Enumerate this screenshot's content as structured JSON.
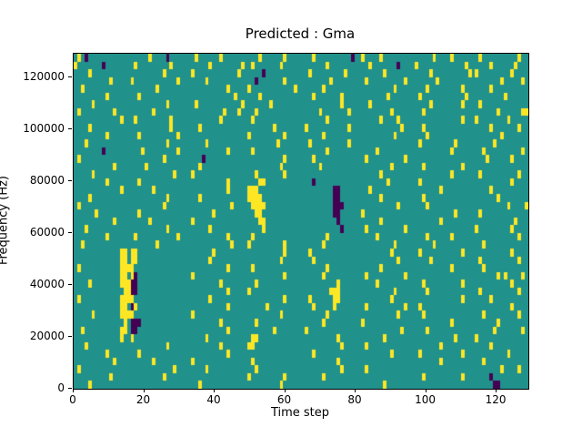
{
  "chart_data": {
    "type": "heatmap",
    "title": "Predicted : Gma",
    "xlabel": "Time step",
    "ylabel": "Frequency (Hz)",
    "xmax": 129,
    "ymax": 129000,
    "legend": "none",
    "grid_lines": "off",
    "value_colors": {
      "0": "#21918c",
      "1": "#fde725",
      "2": "#440154"
    },
    "value_meaning": {
      "0": "mid",
      "1": "high",
      "2": "low"
    },
    "xticks": [
      {
        "value": 0,
        "label": "0"
      },
      {
        "value": 20,
        "label": "20"
      },
      {
        "value": 40,
        "label": "40"
      },
      {
        "value": 60,
        "label": "60"
      },
      {
        "value": 80,
        "label": "80"
      },
      {
        "value": 100,
        "label": "100"
      },
      {
        "value": 120,
        "label": "120"
      }
    ],
    "yticks": [
      {
        "value": 0,
        "label": "0"
      },
      {
        "value": 20000,
        "label": "20000"
      },
      {
        "value": 40000,
        "label": "40000"
      },
      {
        "value": 60000,
        "label": "60000"
      },
      {
        "value": 80000,
        "label": "80000"
      },
      {
        "value": 100000,
        "label": "100000"
      },
      {
        "value": 120000,
        "label": "120000"
      }
    ],
    "grid": {
      "note": "rows ordered top (high frequency) to bottom (0 Hz); each row is 8 chunks of 16 cells; 0=teal background, 1=yellow, 2=dark purple",
      "rows": [
        [
          "0102000000000000",
          "0000010000200000",
          "0010000001000000",
          "0000100000010000",
          "0001000000000020",
          "0100001000000000",
          "0000010000100000",
          "0010000000000100"
        ],
        [
          "1000000020000000",
          "0100000000010000",
          "0000001000000001",
          "0010000000100000",
          "0000000100000000",
          "0001000000020000",
          "1000000000000010",
          "0000010000001000"
        ],
        [
          "0000100000000000",
          "0000000001000000",
          "0100000000000010",
          "0000020000000000",
          "0010000000001000",
          "0000000100000000",
          "0000100000000001",
          "0100000000010000"
        ],
        [
          "0000000000100000",
          "1000000000000100",
          "0000010000000000",
          "0002000000010000",
          "0000000010000000",
          "0010000000000100",
          "0000001000000000",
          "0000000010000010"
        ],
        [
          "0010000000000000",
          "0000000100000000",
          "0000000000010000",
          "0100000000000010",
          "0000001000000000",
          "0000000000100000",
          "0001000000000100",
          "0000010000000000"
        ],
        [
          "0000000001000000",
          "0010000000000000",
          "0000000000000100",
          "0000100000000000",
          "0001000000010000",
          "0000000010000000",
          "0100000000000010",
          "0000000001000000"
        ],
        [
          "0000010000000000",
          "0000000000100000",
          "0010000000000001",
          "0000000100000000",
          "0000000000010000",
          "0001000000000000",
          "0000100000000100",
          "0010000000000000"
        ],
        [
          "0100000000010000",
          "0000001000000000",
          "0000000000100010",
          "0001000000000000",
          "0000010000000100",
          "0000000001000000",
          "0010000000000000",
          "0000000100000011"
        ],
        [
          "0000000000000100",
          "0100000000010000",
          "0000000001000000",
          "0010000000000000",
          "0000000100000000",
          "0000001000010000",
          "0000000000000100",
          "0100000000100000"
        ],
        [
          "0000100000000000",
          "0000000000010000",
          "0001000000000000",
          "0000000010000000",
          "0100000000000100",
          "0000000000001000",
          "0010000000000000",
          "0000010000000100"
        ],
        [
          "0000000001000000",
          "0010000000000100",
          "0000000000000000",
          "0100000000010000",
          "0000001000000000",
          "0000000000100000",
          "0001000000000000",
          "0000000010000000"
        ],
        [
          "0001000000000000",
          "0000000000100000",
          "0000010000000000",
          "0000000001000000",
          "0010000000000100",
          "0000000000000000",
          "0100000000010000",
          "0000001000000000"
        ],
        [
          "0000000020000000",
          "0001000000000100",
          "0000000000010000",
          "0010000000000000",
          "0000000100000000",
          "0000010000000000",
          "0000000000100000",
          "0001000000000010"
        ],
        [
          "0100000000000000",
          "0000000001000000",
          "0000200000000000",
          "0000000000010000",
          "0001000000000000",
          "0010000000000100",
          "0000000000000000",
          "0000100000010000"
        ],
        [
          "0000000000010000",
          "0000100000000000",
          "0001000000000000",
          "0000000000100000",
          "0000010000000000",
          "0000000001000000",
          "0010000000000100",
          "0000000000000000"
        ],
        [
          "0000010000000000",
          "0000000000001000",
          "0100000000000000",
          "0001000000010000",
          "0000000000000000",
          "0000001000000000",
          "0000000000100000",
          "0010000000000100"
        ],
        [
          "0000000001000000",
          "0010000000000000",
          "0000000000010000",
          "0000110000000000",
          "0002000000000000",
          "0000000010000000",
          "0100000000000000",
          "0000000000010000"
        ],
        [
          "0000000000000100",
          "0000001000000000",
          "0000000000010000",
          "0111000000000000",
          "0000000002200000",
          "0001000000000000",
          "0000000100000000",
          "0000010000000000"
        ],
        [
          "0000100000000000",
          "0000000000100000",
          "0001000000000000",
          "0111100000000000",
          "0000000002200000",
          "0000001000000000",
          "0010000000000000",
          "0000000100000000"
        ],
        [
          "0100000000000000",
          "0000000001000000",
          "0000000000001000",
          "0011110000000000",
          "0000000002220000",
          "0000000000010000",
          "0001000000000000",
          "0000000000100001"
        ],
        [
          "0000001000000000",
          "0010000000000000",
          "0000000100000000",
          "0001100000000000",
          "0000000002200000",
          "0100000000000000",
          "0000000000010000",
          "0010000000000000"
        ],
        [
          "0000000000010000",
          "0000010000000000",
          "0100000000000000",
          "0000110000000000",
          "0000000000200000",
          "0000001000000000",
          "0000000100000000",
          "0000000000001000"
        ],
        [
          "0001000000000000",
          "0000000000100000",
          "0000001000000000",
          "0000010000000000",
          "0000000000020000",
          "0010000000000100",
          "0000000000000000",
          "0100000000010000"
        ],
        [
          "0000000001000000",
          "0100000000000100",
          "0000000000010000",
          "0010000000000000",
          "0000000100000000",
          "0000010000000000",
          "0001000000100000",
          "0000000000000100"
        ],
        [
          "0010000000000000",
          "0000000100000000",
          "0000000000001000",
          "0100000000010000",
          "0000001000000000",
          "0000000000100000",
          "0000010000000000",
          "0001000000000000"
        ],
        [
          "0000000000000110",
          "1100000000000000",
          "0000000100000000",
          "0000000000010000",
          "0010000000000000",
          "0000000001000000",
          "0100000000000100",
          "0000000000010000"
        ],
        [
          "0000000000000110",
          "1100000000000000",
          "0000001000000000",
          "0000000000100000",
          "0001000000000000",
          "0000000000010000",
          "0000100000000000",
          "0010000000000100"
        ],
        [
          "0100000000000111",
          "1000000000000000",
          "0000000000010000",
          "0010000000000000",
          "0000000100000000",
          "0000001000000000",
          "0000000000100000",
          "0001000000000000"
        ],
        [
          "0000000000000110",
          "1200000000000000",
          "0100000000000000",
          "0000000000010000",
          "0000001000000000",
          "0010000000000100",
          "0000000000000000",
          "0000000101000010"
        ],
        [
          "0000100000000111",
          "2200000000000000",
          "0000000001000000",
          "0001000000000000",
          "0000000000100000",
          "0000010000000000",
          "0010000000000100",
          "0000000000010000"
        ],
        [
          "0000000000000011",
          "2200000000000000",
          "0000000000010000",
          "0100000000000000",
          "0000000011100000",
          "0000000000100000",
          "0001000000000000",
          "0010000000000100"
        ],
        [
          "0100000000000111",
          "1000000000000000",
          "0000001000000000",
          "0000000000010000",
          "0010000001100000",
          "0000000001000000",
          "0000000000000100",
          "0000010000000000"
        ],
        [
          "0000000000000110",
          "2100000000000000",
          "0000000000010000",
          "0000001000000000",
          "0001000001000000",
          "0010000000000100",
          "0100000000000000",
          "0000000000010000"
        ],
        [
          "0000010000000111",
          "1000000000000000",
          "0100000000000000",
          "0000000000100000",
          "0000000100000000",
          "0000000000010000",
          "0010000000000000",
          "0001000000000100"
        ],
        [
          "0000000000000010",
          "2220000000000000",
          "0000000001000000",
          "0001000000000000",
          "0000001000000000",
          "0100000000000000",
          "0000000000100000",
          "0000000100000000"
        ],
        [
          "0010000000000110",
          "2200000000000000",
          "0000000000010000",
          "0000000010000000",
          "0100000000000000",
          "0000000000001000",
          "0001000000000000",
          "0000001000000010"
        ],
        [
          "0000000000000100",
          "1000000000000000",
          "0000010000000000",
          "0011000000000000",
          "0000000000100000",
          "0000000100000000",
          "0000000000010000",
          "0100000000000000"
        ],
        [
          "0001000000000000",
          "0000000000100000",
          "0000000001000000",
          "0110000000000000",
          "0000000000010000",
          "0010000000000000",
          "0000000100000000",
          "0000010000000000"
        ],
        [
          "0000000001000000",
          "0010000000000000",
          "0000000000010000",
          "0000000000000000",
          "0001000000000000",
          "0000000001000000",
          "0100000000000100",
          "0000000000100000"
        ],
        [
          "0000000000010000",
          "0000001000000000",
          "0100000000000000",
          "0010000000000000",
          "0000000000100000",
          "0000000000000000",
          "0000000100000000",
          "0001000000000000"
        ],
        [
          "0100000000000000",
          "0000000000001000",
          "0000010000000000",
          "0001000000000000",
          "0000000000010000",
          "0010000000000000",
          "0000000000000000",
          "0000000010000100"
        ],
        [
          "0000000000100000",
          "0000000001000000",
          "0000000000000000",
          "0100000000010000",
          "0000001000000000",
          "0000000000000000",
          "0010000000000100",
          "0000020000000000"
        ],
        [
          "0000100000000000",
          "0000000000000000",
          "0001000000000000",
          "0000000000100000",
          "0000000000000000",
          "0000000100000000",
          "0000000000000000",
          "0000002200000000"
        ]
      ]
    }
  }
}
